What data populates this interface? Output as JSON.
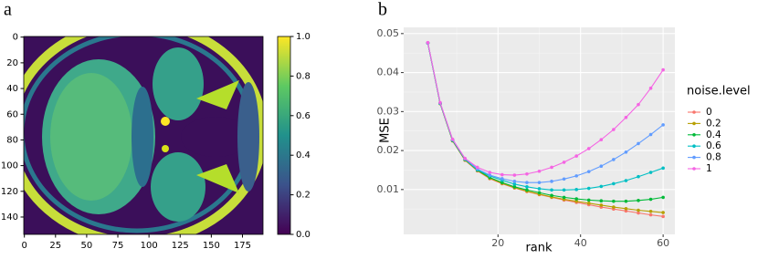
{
  "chart_data": [
    {
      "type": "image",
      "panel": "a",
      "xlim": [
        -0.5,
        191.5
      ],
      "xticks": [
        0,
        25,
        50,
        75,
        100,
        125,
        150,
        175
      ],
      "ylim": [
        153.5,
        -0.5
      ],
      "yticks": [
        0,
        20,
        40,
        60,
        80,
        100,
        120,
        140
      ],
      "colormap": "viridis",
      "clim": [
        0,
        1
      ],
      "cticks": [
        {
          "value": 0,
          "label": "0.0"
        },
        {
          "value": 0.2,
          "label": "0.2"
        },
        {
          "value": 0.4,
          "label": "0.4"
        },
        {
          "value": 0.6,
          "label": "0.6"
        },
        {
          "value": 0.8,
          "label": "0.8"
        },
        {
          "value": 1,
          "label": "1.0"
        }
      ]
    },
    {
      "type": "line",
      "panel": "b",
      "x_label": "rank",
      "y_label": "MSE",
      "legend_title": "noise.level",
      "grid": true,
      "x": [
        3,
        6,
        9,
        12,
        15,
        18,
        21,
        24,
        27,
        30,
        33,
        36,
        39,
        42,
        45,
        48,
        51,
        54,
        57,
        60
      ],
      "xlim": [
        -2.85,
        62.85
      ],
      "xticks": [
        20,
        40,
        60
      ],
      "ylim": [
        -0.0015,
        0.0516
      ],
      "yticks": [
        0.01,
        0.02,
        0.03,
        0.04,
        0.05
      ],
      "series": [
        {
          "name": "0",
          "color": "#F8766D",
          "values": [
            0.0476,
            0.032,
            0.0225,
            0.0175,
            0.0148,
            0.0128,
            0.0115,
            0.0104,
            0.0095,
            0.0087,
            0.008,
            0.0073,
            0.0067,
            0.0061,
            0.0055,
            0.005,
            0.0045,
            0.004,
            0.0035,
            0.0031
          ]
        },
        {
          "name": "0.2",
          "color": "#B79F00",
          "values": [
            0.0476,
            0.032,
            0.0225,
            0.0176,
            0.0149,
            0.0129,
            0.0116,
            0.0105,
            0.0096,
            0.0088,
            0.0081,
            0.0075,
            0.007,
            0.0065,
            0.006,
            0.0055,
            0.0051,
            0.0047,
            0.0044,
            0.0041
          ]
        },
        {
          "name": "0.4",
          "color": "#00BA38",
          "values": [
            0.0476,
            0.0321,
            0.0226,
            0.0177,
            0.015,
            0.0131,
            0.0118,
            0.0107,
            0.0099,
            0.0092,
            0.0085,
            0.008,
            0.0076,
            0.0073,
            0.0071,
            0.007,
            0.007,
            0.0072,
            0.0075,
            0.008
          ]
        },
        {
          "name": "0.6",
          "color": "#00BFC4",
          "values": [
            0.0476,
            0.0321,
            0.0227,
            0.0178,
            0.0151,
            0.0135,
            0.0124,
            0.0114,
            0.0107,
            0.0102,
            0.0099,
            0.0099,
            0.01,
            0.0103,
            0.0108,
            0.0115,
            0.0123,
            0.0133,
            0.0144,
            0.0155
          ]
        },
        {
          "name": "0.8",
          "color": "#619CFF",
          "values": [
            0.0476,
            0.0322,
            0.0228,
            0.0179,
            0.0153,
            0.0137,
            0.0128,
            0.0121,
            0.0118,
            0.0118,
            0.0121,
            0.0127,
            0.0135,
            0.0146,
            0.016,
            0.0177,
            0.0196,
            0.0218,
            0.0241,
            0.0266
          ]
        },
        {
          "name": "1",
          "color": "#F564E3",
          "values": [
            0.0477,
            0.0323,
            0.0229,
            0.018,
            0.0157,
            0.0144,
            0.0138,
            0.0137,
            0.014,
            0.0147,
            0.0157,
            0.017,
            0.0186,
            0.0205,
            0.0228,
            0.0254,
            0.0285,
            0.0318,
            0.036,
            0.0407
          ]
        }
      ]
    }
  ]
}
